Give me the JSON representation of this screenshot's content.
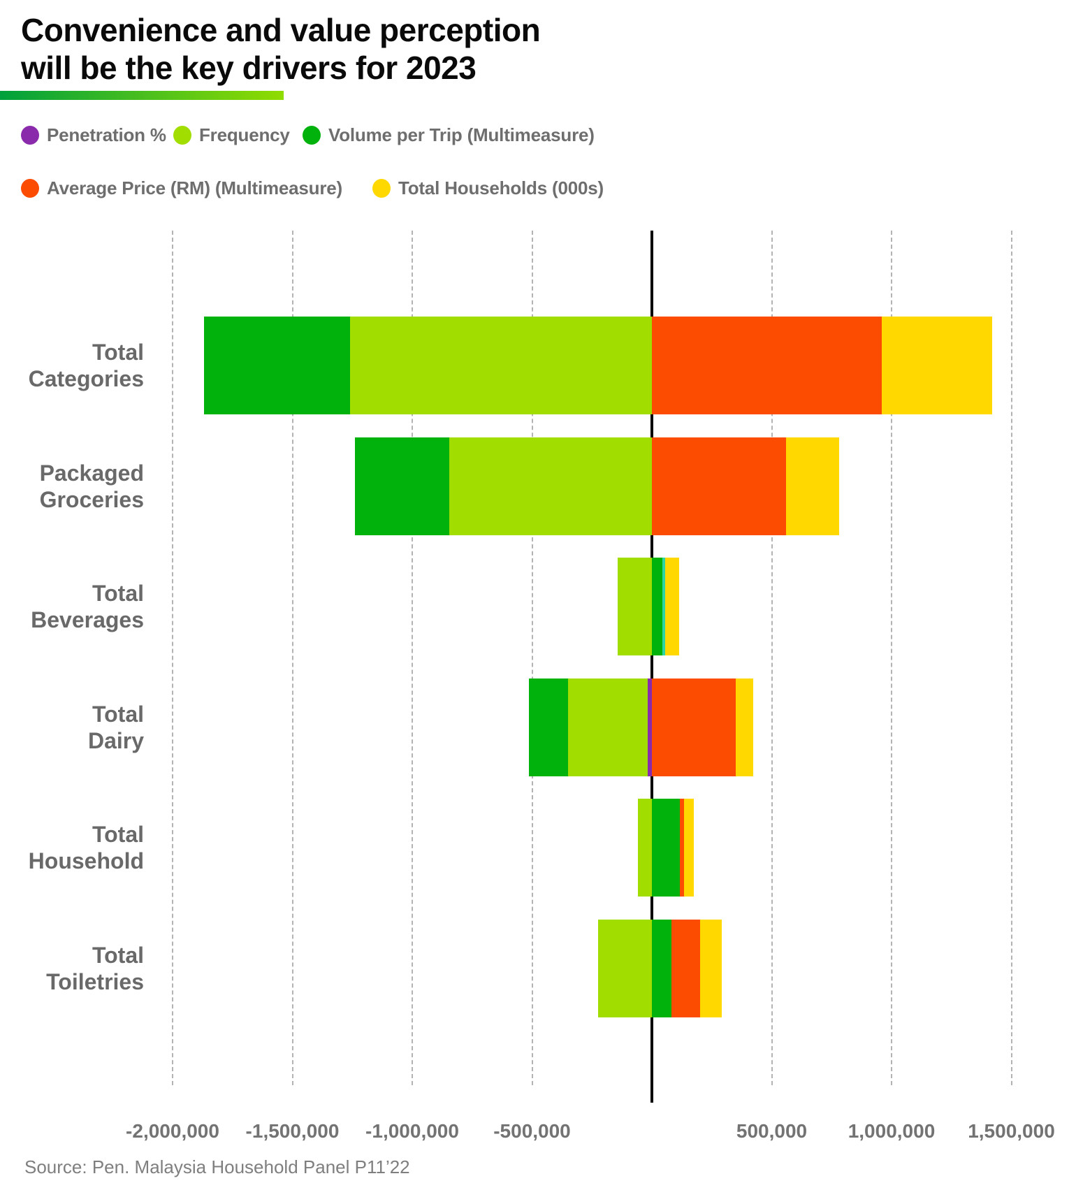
{
  "title": {
    "line1": "Convenience and value perception",
    "line2": "will be the key drivers for 2023"
  },
  "accent_underline_colors": [
    "#00A03C",
    "#90DC00"
  ],
  "legend": {
    "rows": [
      {
        "items": [
          {
            "label": "Penetration %",
            "color": "#8A2BAC"
          },
          {
            "label": "Frequency",
            "color": "#A1DE00"
          },
          {
            "label": "Volume per Trip (Multimeasure)",
            "color": "#00B20B"
          }
        ]
      },
      {
        "items": [
          {
            "label": "Average Price (RM) (Multimeasure)",
            "color": "#FC4C02"
          },
          {
            "label": "Total Households (000s)",
            "color": "#FFD800"
          }
        ]
      }
    ]
  },
  "chart_data": {
    "type": "bar",
    "orientation": "horizontal-diverging-stacked",
    "title": "Convenience and value perception will be the key drivers for 2023",
    "legend_position": "top",
    "grid": "vertical-dashed",
    "categories": [
      {
        "name": "Total Categories",
        "label_lines": [
          "Total",
          "Categories"
        ]
      },
      {
        "name": "Packaged Groceries",
        "label_lines": [
          "Packaged",
          "Groceries"
        ]
      },
      {
        "name": "Total Beverages",
        "label_lines": [
          "Total",
          "Beverages"
        ]
      },
      {
        "name": "Total Dairy",
        "label_lines": [
          "Total",
          "Dairy"
        ]
      },
      {
        "name": "Total Household",
        "label_lines": [
          "Total",
          "Household"
        ]
      },
      {
        "name": "Total Toiletries",
        "label_lines": [
          "Total",
          "Toiletries"
        ]
      }
    ],
    "series": [
      {
        "name": "Penetration %",
        "color": "#8A2BAC",
        "values": [
          0,
          0,
          0,
          -18000,
          0,
          0
        ]
      },
      {
        "name": "Frequency",
        "color": "#A1DE00",
        "values": [
          -1260000,
          -845000,
          -142000,
          -331000,
          -57000,
          -224000
        ]
      },
      {
        "name": "Volume per Trip (Multimeasure)",
        "color": "#00B20B",
        "values": [
          -610000,
          -395000,
          45000,
          -165000,
          116000,
          82000
        ]
      },
      {
        "name": "teal boundary sliver (not in legend)",
        "color": "#2BD6A4",
        "values": [
          0,
          0,
          10000,
          0,
          0,
          0
        ],
        "artifact": true
      },
      {
        "name": "Average Price (RM) (Multimeasure)",
        "color": "#FC4C02",
        "values": [
          960000,
          560000,
          0,
          351000,
          19000,
          119000
        ]
      },
      {
        "name": "Total Households (000s)",
        "color": "#FFD800",
        "values": [
          460000,
          220000,
          58000,
          71000,
          41000,
          90000
        ]
      }
    ],
    "x_axis": {
      "range": [
        -2000000,
        1500000
      ],
      "zero_line": true,
      "ticks": [
        {
          "value": -2000000,
          "label": "-2,000,000"
        },
        {
          "value": -1500000,
          "label": "-1,500,000"
        },
        {
          "value": -1000000,
          "label": "-1,000,000"
        },
        {
          "value": -500000,
          "label": "-500,000"
        },
        {
          "value": 0,
          "label": ""
        },
        {
          "value": 500000,
          "label": "500,000"
        },
        {
          "value": 1000000,
          "label": "1,000,000"
        },
        {
          "value": 1500000,
          "label": "1,500,000"
        }
      ]
    }
  },
  "source": "Source: Pen. Malaysia Household Panel P11’22"
}
